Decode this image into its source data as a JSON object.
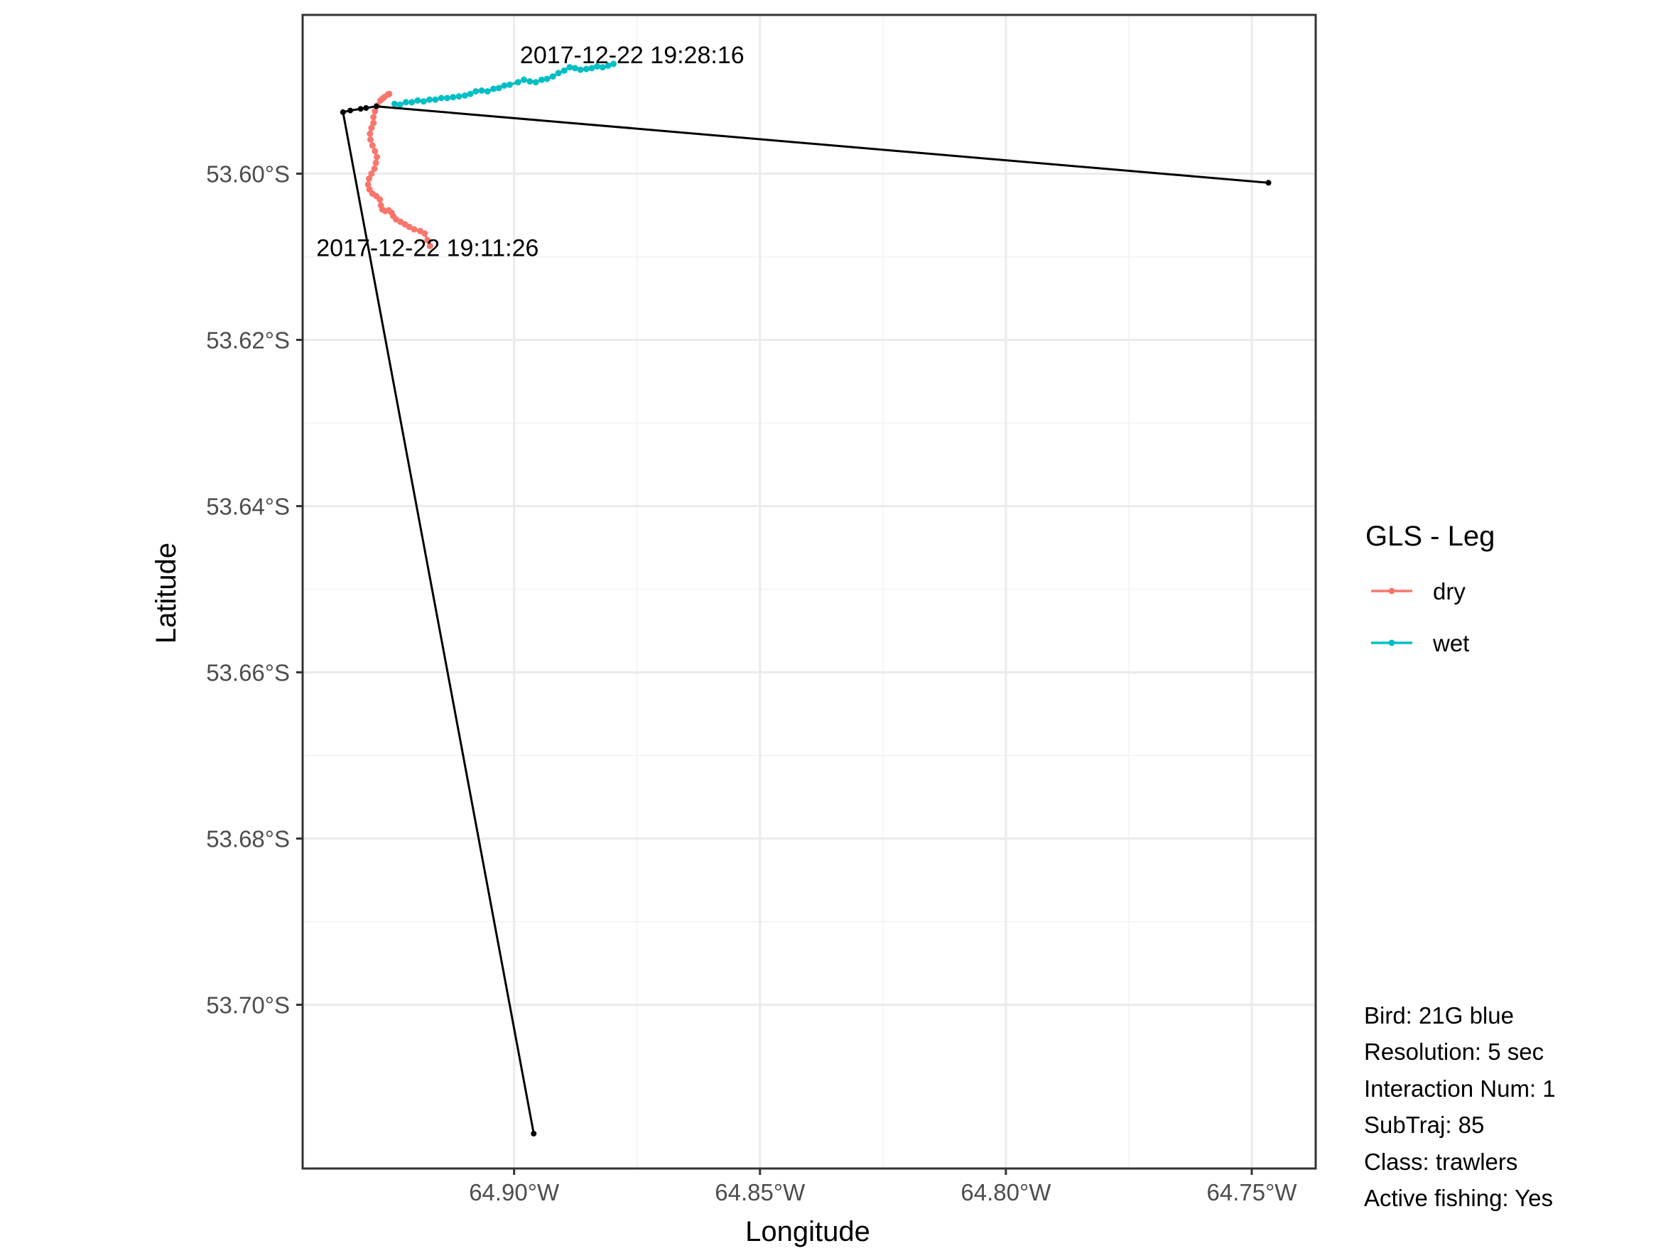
{
  "chart_data": {
    "type": "line",
    "xlabel": "Longitude",
    "ylabel": "Latitude",
    "xlim": [
      -64.943,
      -64.737
    ],
    "ylim": [
      -53.7197,
      -53.5809
    ],
    "x_ticks": [
      {
        "value": -64.9,
        "label": "64.90°W"
      },
      {
        "value": -64.85,
        "label": "64.85°W"
      },
      {
        "value": -64.8,
        "label": "64.80°W"
      },
      {
        "value": -64.75,
        "label": "64.75°W"
      }
    ],
    "y_ticks": [
      {
        "value": -53.6,
        "label": "53.60°S"
      },
      {
        "value": -53.62,
        "label": "53.62°S"
      },
      {
        "value": -53.64,
        "label": "53.64°S"
      },
      {
        "value": -53.66,
        "label": "53.66°S"
      },
      {
        "value": -53.68,
        "label": "53.68°S"
      },
      {
        "value": -53.7,
        "label": "53.70°S"
      }
    ],
    "grid": true,
    "legend": {
      "title": "GLS - Leg",
      "position": "right",
      "items": [
        {
          "label": "dry",
          "color": "#F8766D"
        },
        {
          "label": "wet",
          "color": "#00BFC4"
        }
      ]
    },
    "series": [
      {
        "name": "dry",
        "color": "#F8766D",
        "points": [
          [
            -64.9171,
            -53.6087
          ],
          [
            -64.9176,
            -53.608
          ],
          [
            -64.9182,
            -53.6072
          ],
          [
            -64.9191,
            -53.6069
          ],
          [
            -64.9203,
            -53.6067
          ],
          [
            -64.9213,
            -53.6064
          ],
          [
            -64.9222,
            -53.6061
          ],
          [
            -64.9231,
            -53.6058
          ],
          [
            -64.924,
            -53.6055
          ],
          [
            -64.9246,
            -53.6051
          ],
          [
            -64.9249,
            -53.6047
          ],
          [
            -64.9255,
            -53.6044
          ],
          [
            -64.9262,
            -53.6045
          ],
          [
            -64.9268,
            -53.6043
          ],
          [
            -64.9271,
            -53.6038
          ],
          [
            -64.9273,
            -53.6031
          ],
          [
            -64.928,
            -53.6027
          ],
          [
            -64.9288,
            -53.6024
          ],
          [
            -64.9294,
            -53.6019
          ],
          [
            -64.9297,
            -53.6013
          ],
          [
            -64.9295,
            -53.6006
          ],
          [
            -64.929,
            -53.6
          ],
          [
            -64.9284,
            -53.5994
          ],
          [
            -64.9281,
            -53.5987
          ],
          [
            -64.9279,
            -53.598
          ],
          [
            -64.9283,
            -53.5973
          ],
          [
            -64.9288,
            -53.5966
          ],
          [
            -64.9292,
            -53.5959
          ],
          [
            -64.9293,
            -53.5952
          ],
          [
            -64.929,
            -53.5945
          ],
          [
            -64.9286,
            -53.5939
          ],
          [
            -64.9286,
            -53.5932
          ],
          [
            -64.9283,
            -53.5925
          ],
          [
            -64.9278,
            -53.5918
          ],
          [
            -64.9272,
            -53.5912
          ],
          [
            -64.9268,
            -53.591
          ],
          [
            -64.9264,
            -53.5908
          ],
          [
            -64.9257,
            -53.5905
          ],
          [
            -64.9254,
            -53.5904
          ]
        ]
      },
      {
        "name": "wet",
        "color": "#00BFC4",
        "points": [
          [
            -64.9243,
            -53.5916
          ],
          [
            -64.9232,
            -53.5917
          ],
          [
            -64.922,
            -53.5914
          ],
          [
            -64.9208,
            -53.5914
          ],
          [
            -64.9196,
            -53.5912
          ],
          [
            -64.9184,
            -53.5913
          ],
          [
            -64.9172,
            -53.5911
          ],
          [
            -64.916,
            -53.5911
          ],
          [
            -64.9148,
            -53.5909
          ],
          [
            -64.9136,
            -53.5909
          ],
          [
            -64.9124,
            -53.5908
          ],
          [
            -64.9112,
            -53.5907
          ],
          [
            -64.91,
            -53.5906
          ],
          [
            -64.9089,
            -53.5904
          ],
          [
            -64.9078,
            -53.5901
          ],
          [
            -64.9066,
            -53.59
          ],
          [
            -64.9054,
            -53.5901
          ],
          [
            -64.9042,
            -53.5898
          ],
          [
            -64.9031,
            -53.5897
          ],
          [
            -64.902,
            -53.5894
          ],
          [
            -64.9009,
            -53.5893
          ],
          [
            -64.8992,
            -53.589
          ],
          [
            -64.898,
            -53.5887
          ],
          [
            -64.8968,
            -53.5889
          ],
          [
            -64.8956,
            -53.589
          ],
          [
            -64.8944,
            -53.5887
          ],
          [
            -64.8933,
            -53.5886
          ],
          [
            -64.8921,
            -53.5883
          ],
          [
            -64.891,
            -53.5879
          ],
          [
            -64.8898,
            -53.5876
          ],
          [
            -64.8887,
            -53.5872
          ],
          [
            -64.8876,
            -53.5873
          ],
          [
            -64.8865,
            -53.5875
          ],
          [
            -64.8853,
            -53.5874
          ],
          [
            -64.8842,
            -53.5873
          ],
          [
            -64.8831,
            -53.5871
          ],
          [
            -64.882,
            -53.5872
          ],
          [
            -64.8809,
            -53.587
          ],
          [
            -64.8798,
            -53.5868
          ]
        ]
      },
      {
        "name": "",
        "color": "#000000",
        "points": [
          [
            -64.896,
            -53.7155
          ],
          [
            -64.9348,
            -53.5926
          ],
          [
            -64.9333,
            -53.5924
          ],
          [
            -64.9312,
            -53.5922
          ],
          [
            -64.9301,
            -53.5921
          ],
          [
            -64.928,
            -53.5919
          ],
          [
            -64.7466,
            -53.6011
          ]
        ]
      }
    ],
    "annotations": [
      {
        "text": "2017-12-22 19:28:16",
        "x": -64.876,
        "y": -53.5857
      },
      {
        "text": "2017-12-22 19:11:26",
        "x": -64.9176,
        "y": -53.6089
      }
    ],
    "caption": [
      "Bird: 21G blue",
      "Resolution: 5 sec",
      "Interaction Num: 1",
      "SubTraj: 85",
      "Class: trawlers",
      "Active fishing: Yes"
    ]
  }
}
